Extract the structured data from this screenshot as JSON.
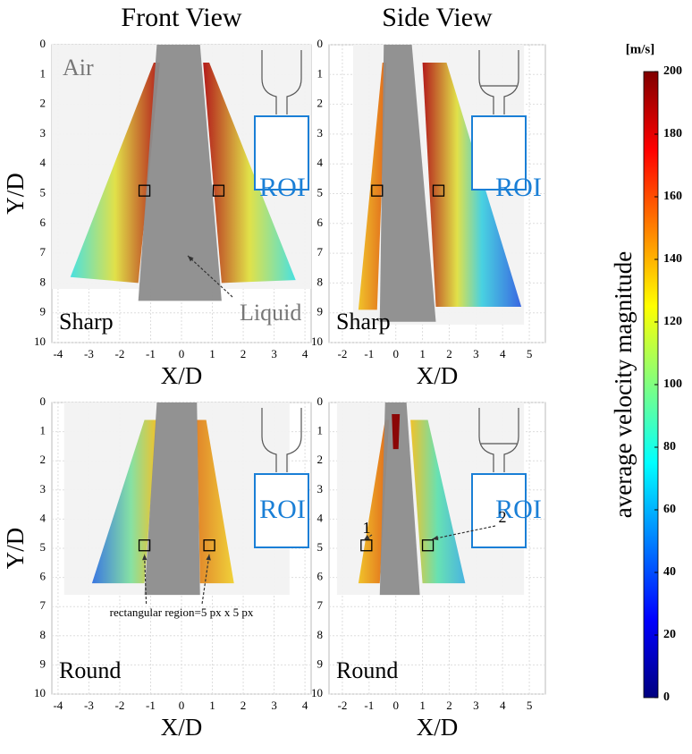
{
  "chart_data": [
    {
      "type": "field",
      "title": "Front View",
      "xlabel": "X/D",
      "ylabel": "Y/D",
      "xlim": [
        -4.2,
        4.2
      ],
      "ylim": [
        0,
        10
      ],
      "y_inverted": true,
      "grid": true,
      "xticks": [
        -4,
        -3,
        -2,
        -1,
        0,
        1,
        2,
        3,
        4
      ],
      "yticks": [
        0,
        1,
        2,
        3,
        4,
        5,
        6,
        7,
        8,
        9,
        10
      ],
      "annotations": [
        "Air",
        "Liquid",
        "Sharp",
        "ROI"
      ],
      "probes": [
        {
          "x": -1.2,
          "y": 4.9
        },
        {
          "x": 1.2,
          "y": 4.9
        }
      ]
    },
    {
      "type": "field",
      "title": "Side View",
      "xlabel": "X/D",
      "xlim": [
        -2.5,
        5.6
      ],
      "ylim": [
        0,
        10
      ],
      "y_inverted": true,
      "grid": true,
      "xticks": [
        -2,
        -1,
        0,
        1,
        2,
        3,
        4,
        5
      ],
      "yticks": [
        0,
        1,
        2,
        3,
        4,
        5,
        6,
        7,
        8,
        9,
        10
      ],
      "annotations": [
        "Sharp",
        "ROI"
      ],
      "probes": [
        {
          "x": -0.7,
          "y": 4.9
        },
        {
          "x": 1.6,
          "y": 4.9
        }
      ]
    },
    {
      "type": "field",
      "xlabel": "X/D",
      "ylabel": "Y/D",
      "xlim": [
        -4.2,
        4.2
      ],
      "ylim": [
        0,
        10
      ],
      "y_inverted": true,
      "grid": true,
      "xticks": [
        -4,
        -3,
        -2,
        -1,
        0,
        1,
        2,
        3,
        4
      ],
      "yticks": [
        0,
        1,
        2,
        3,
        4,
        5,
        6,
        7,
        8,
        9,
        10
      ],
      "annotations": [
        "Round",
        "ROI",
        "rectangular region=5 px x 5 px"
      ],
      "probes": [
        {
          "x": -1.2,
          "y": 4.9
        },
        {
          "x": 0.9,
          "y": 4.9
        }
      ]
    },
    {
      "type": "field",
      "xlabel": "X/D",
      "xlim": [
        -2.5,
        5.6
      ],
      "ylim": [
        0,
        10
      ],
      "y_inverted": true,
      "grid": true,
      "xticks": [
        -2,
        -1,
        0,
        1,
        2,
        3,
        4,
        5
      ],
      "yticks": [
        0,
        1,
        2,
        3,
        4,
        5,
        6,
        7,
        8,
        9,
        10
      ],
      "annotations": [
        "Round",
        "ROI",
        "1",
        "2"
      ],
      "probes": [
        {
          "x": -1.1,
          "y": 4.9
        },
        {
          "x": 1.2,
          "y": 4.9
        }
      ]
    }
  ],
  "colorbar": {
    "label": "average velocity magnitude",
    "unit": "[m/s]",
    "lim": [
      0,
      200
    ],
    "ticks": [
      0,
      20,
      40,
      60,
      80,
      100,
      120,
      140,
      160,
      180,
      200
    ],
    "colors": [
      "#00007f",
      "#0000ff",
      "#0080ff",
      "#00ffff",
      "#80ff80",
      "#ffff00",
      "#ff8000",
      "#ff0000",
      "#7f0000"
    ]
  }
}
